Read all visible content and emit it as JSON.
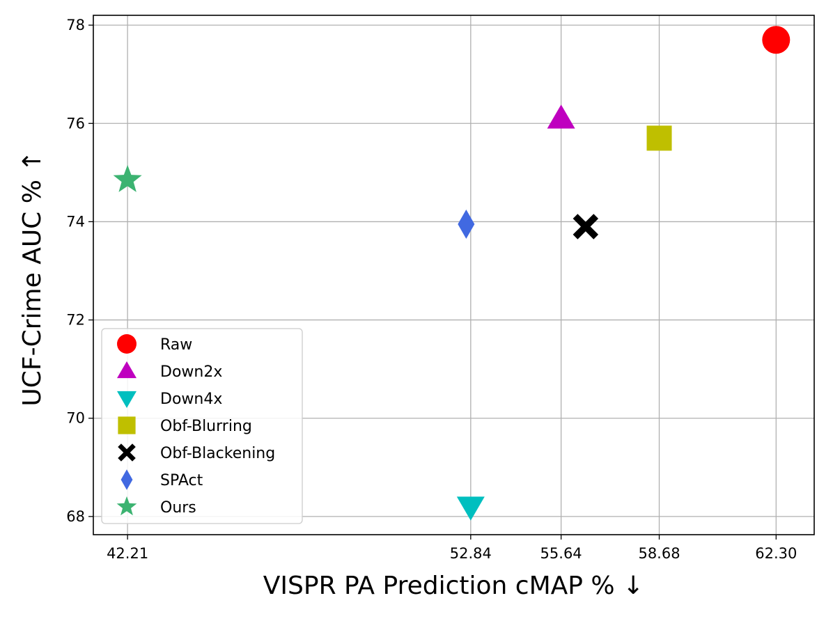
{
  "chart_data": {
    "type": "scatter",
    "title": "",
    "xlabel": "VISPR PA Prediction cMAP %  ↓",
    "ylabel": "UCF-Crime AUC %  ↑",
    "xlim": [
      41.15,
      63.48
    ],
    "ylim": [
      67.63,
      78.2
    ],
    "x_ticks": [
      42.21,
      52.84,
      55.64,
      58.68,
      62.3
    ],
    "x_tick_labels": [
      "42.21",
      "52.84",
      "55.64",
      "58.68",
      "62.30"
    ],
    "y_ticks": [
      68,
      70,
      72,
      74,
      76,
      78
    ],
    "y_tick_labels": [
      "68",
      "70",
      "72",
      "74",
      "76",
      "78"
    ],
    "grid": true,
    "legend_position": "lower-left",
    "series": [
      {
        "name": "Raw",
        "x": 62.3,
        "y": 77.7,
        "marker": "circle",
        "color": "#ff0000"
      },
      {
        "name": "Down2x",
        "x": 55.64,
        "y": 76.1,
        "marker": "triangle-up",
        "color": "#bf00bf"
      },
      {
        "name": "Down4x",
        "x": 52.84,
        "y": 68.2,
        "marker": "triangle-down",
        "color": "#00bfbf"
      },
      {
        "name": "Obf-Blurring",
        "x": 58.68,
        "y": 75.7,
        "marker": "square",
        "color": "#bfbf00"
      },
      {
        "name": "Obf-Blackening",
        "x": 56.4,
        "y": 73.9,
        "marker": "x-filled",
        "color": "#000000"
      },
      {
        "name": "SPAct",
        "x": 52.7,
        "y": 73.95,
        "marker": "diamond",
        "color": "#4169e1"
      },
      {
        "name": "Ours",
        "x": 42.21,
        "y": 74.85,
        "marker": "star",
        "color": "#3cb371"
      }
    ]
  }
}
